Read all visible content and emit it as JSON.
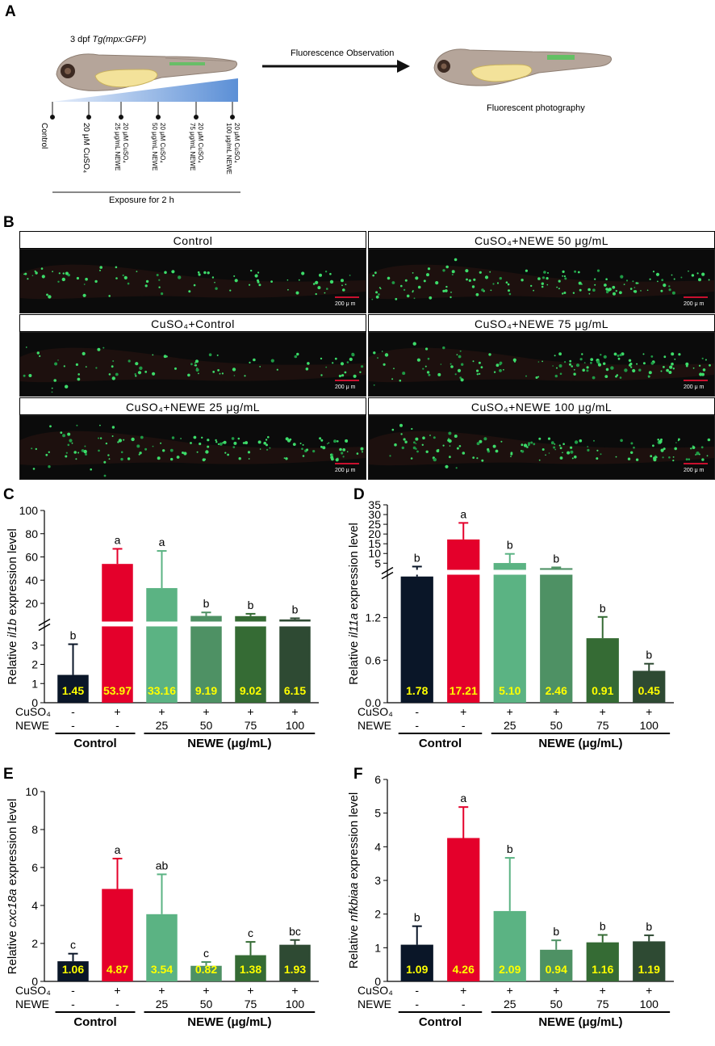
{
  "panels": {
    "A": "A",
    "B": "B",
    "C": "C",
    "D": "D",
    "E": "E",
    "F": "F"
  },
  "schema": {
    "fish_label_prefix": "3 dpf ",
    "fish_label_italic": "Tg(mpx:GFP)",
    "arrow_label": "Fluorescence Observation",
    "photo_label": "Fluorescent photography",
    "exposure_label": "Exposure for 2 h",
    "groups": [
      [
        "Control"
      ],
      [
        "20 μM CuSO₄"
      ],
      [
        "20 μM CuSO₄",
        "25 μg/mL NEWE"
      ],
      [
        "20 μM CuSO₄",
        "50 μg/mL NEWE"
      ],
      [
        "20 μM CuSO₄",
        "75 μg/mL NEWE"
      ],
      [
        "20 μM CuSO₄",
        "100 μg/mL NEWE"
      ]
    ]
  },
  "images": {
    "scale_label": "200 μ m",
    "cells": [
      {
        "title": "Control"
      },
      {
        "title": "CuSO₄+NEWE 50 μg/mL"
      },
      {
        "title": "CuSO₄+Control"
      },
      {
        "title": "CuSO₄+NEWE 75 μg/mL"
      },
      {
        "title": "CuSO₄+NEWE 25 μg/mL"
      },
      {
        "title": "CuSO₄+NEWE 100 μg/mL"
      }
    ]
  },
  "treatment_rows": {
    "cuso4_label": "CuSO₄",
    "newe_label": "NEWE",
    "cuso4": [
      "-",
      "+",
      "+",
      "+",
      "+",
      "+"
    ],
    "newe": [
      "-",
      "-",
      "25",
      "50",
      "75",
      "100"
    ],
    "control_label": "Control",
    "newe_group_label": "NEWE (μg/mL)"
  },
  "colors": {
    "bars": [
      "#0a1628",
      "#e4002b",
      "#5bb383",
      "#4e9164",
      "#356b34",
      "#2e4a33"
    ],
    "value_text": "#ffff00",
    "axis": "#000000"
  },
  "chart_data": [
    {
      "panel": "C",
      "type": "bar",
      "ylabel_prefix": "Relative ",
      "ylabel_gene": "il1b",
      "ylabel_suffix": " expression level",
      "categories": [
        "Control",
        "CuSO₄",
        "CuSO₄+NEWE 25",
        "CuSO₄+NEWE 50",
        "CuSO₄+NEWE 75",
        "CuSO₄+NEWE 100"
      ],
      "values": [
        1.45,
        53.97,
        33.16,
        9.19,
        9.02,
        6.15
      ],
      "value_labels": [
        "1.45",
        "53.97",
        "33.16",
        "9.19",
        "9.02",
        "6.15"
      ],
      "errors": [
        1.6,
        13,
        32,
        3,
        2,
        1
      ],
      "letters": [
        "b",
        "a",
        "a",
        "b",
        "b",
        "b"
      ],
      "axis_break": true,
      "ylim_lower": [
        0,
        4
      ],
      "ylim_upper": [
        4,
        100
      ],
      "yticks_lower": [
        "0",
        "1",
        "2",
        "3"
      ],
      "yticks_upper": [
        "20",
        "40",
        "60",
        "80",
        "100"
      ]
    },
    {
      "panel": "D",
      "type": "bar",
      "ylabel_prefix": "Relative ",
      "ylabel_gene": "il11a",
      "ylabel_suffix": " expression level",
      "categories": [
        "Control",
        "CuSO₄",
        "CuSO₄+NEWE 25",
        "CuSO₄+NEWE 50",
        "CuSO₄+NEWE 75",
        "CuSO₄+NEWE 100"
      ],
      "values": [
        1.78,
        17.21,
        5.1,
        2.46,
        0.91,
        0.45
      ],
      "value_labels": [
        "1.78",
        "17.21",
        "5.10",
        "2.46",
        "0.91",
        "0.45"
      ],
      "errors": [
        1.5,
        8.5,
        4.7,
        0.4,
        0.3,
        0.1
      ],
      "letters": [
        "b",
        "a",
        "b",
        "b",
        "b",
        "b"
      ],
      "axis_break": true,
      "ylim_lower": [
        0,
        1.8
      ],
      "ylim_upper": [
        1.8,
        35
      ],
      "yticks_lower": [
        "0.0",
        "0.6",
        "1.2"
      ],
      "yticks_upper": [
        "5",
        "10",
        "15",
        "20",
        "25",
        "30",
        "35"
      ]
    },
    {
      "panel": "E",
      "type": "bar",
      "ylabel_prefix": "Relative  ",
      "ylabel_gene": "cxc18a",
      "ylabel_suffix": " expression level",
      "categories": [
        "Control",
        "CuSO₄",
        "CuSO₄+NEWE 25",
        "CuSO₄+NEWE 50",
        "CuSO₄+NEWE 75",
        "CuSO₄+NEWE 100"
      ],
      "values": [
        1.06,
        4.87,
        3.54,
        0.82,
        1.38,
        1.93
      ],
      "value_labels": [
        "1.06",
        "4.87",
        "3.54",
        "0.82",
        "1.38",
        "1.93"
      ],
      "errors": [
        0.4,
        1.6,
        2.1,
        0.2,
        0.7,
        0.25
      ],
      "letters": [
        "c",
        "a",
        "ab",
        "c",
        "c",
        "bc"
      ],
      "axis_break": false,
      "ylim": [
        0,
        10
      ],
      "yticks": [
        "0",
        "2",
        "4",
        "6",
        "8",
        "10"
      ]
    },
    {
      "panel": "F",
      "type": "bar",
      "ylabel_prefix": "Relative ",
      "ylabel_gene": "nfkbiaa",
      "ylabel_suffix": " expression level",
      "categories": [
        "Control",
        "CuSO₄",
        "CuSO₄+NEWE 25",
        "CuSO₄+NEWE 50",
        "CuSO₄+NEWE 75",
        "CuSO₄+NEWE 100"
      ],
      "values": [
        1.09,
        4.26,
        2.09,
        0.94,
        1.16,
        1.19
      ],
      "value_labels": [
        "1.09",
        "4.26",
        "2.09",
        "0.94",
        "1.16",
        "1.19"
      ],
      "errors": [
        0.55,
        0.92,
        1.58,
        0.28,
        0.22,
        0.18
      ],
      "letters": [
        "b",
        "a",
        "b",
        "b",
        "b",
        "b"
      ],
      "axis_break": false,
      "ylim": [
        0,
        6
      ],
      "yticks": [
        "0",
        "1",
        "2",
        "3",
        "4",
        "5",
        "6"
      ]
    }
  ]
}
